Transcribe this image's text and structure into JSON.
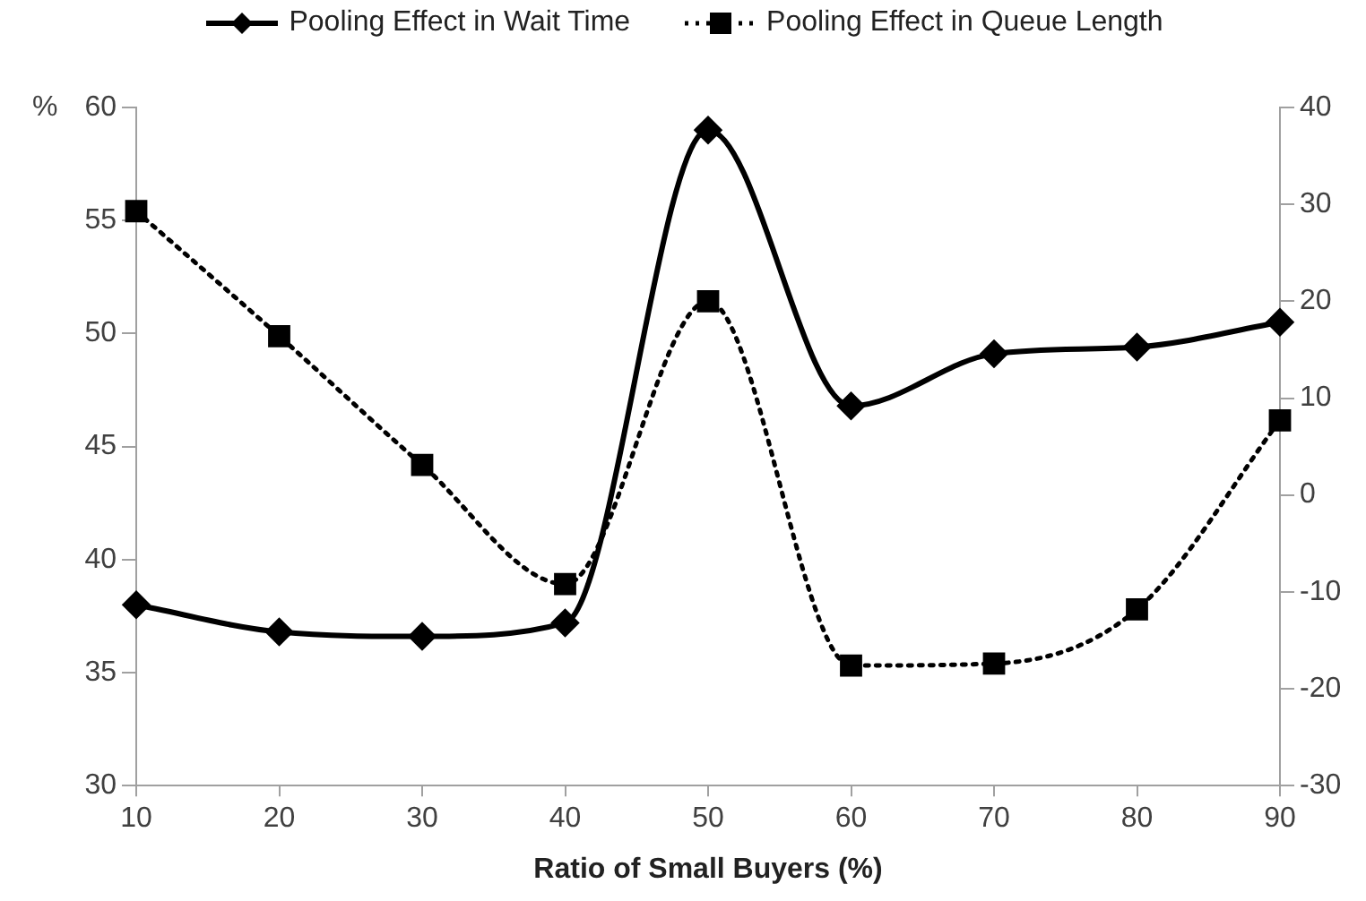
{
  "chart_data": {
    "type": "line",
    "xlabel": "Ratio of Small Buyers (%)",
    "ylabel": "%",
    "categories": [
      "10",
      "20",
      "30",
      "40",
      "50",
      "60",
      "70",
      "80",
      "90"
    ],
    "series": [
      {
        "name": "Pooling Effect in Wait Time",
        "color": "#000000",
        "marker": "diamond",
        "line_style": "solid",
        "values": [
          38,
          36.8,
          36.6,
          37.2,
          59,
          46.8,
          49.1,
          49.4,
          50.5
        ]
      },
      {
        "name": "Pooling Effect in Queue Length",
        "color": "#000000",
        "marker": "square",
        "line_style": "dotted",
        "axis": "y2",
        "values": [
          29.3,
          16.4,
          3.1,
          -9.2,
          20,
          -17.6,
          -17.4,
          -11.8,
          7.7
        ]
      }
    ],
    "ylim": [
      30,
      60
    ],
    "yticks": [
      30,
      35,
      40,
      45,
      50,
      55,
      60
    ],
    "y2lim": [
      -30,
      40
    ],
    "y2ticks": [
      -30,
      -20,
      -10,
      0,
      10,
      20,
      30,
      40
    ],
    "grid": false,
    "legend": "top"
  }
}
